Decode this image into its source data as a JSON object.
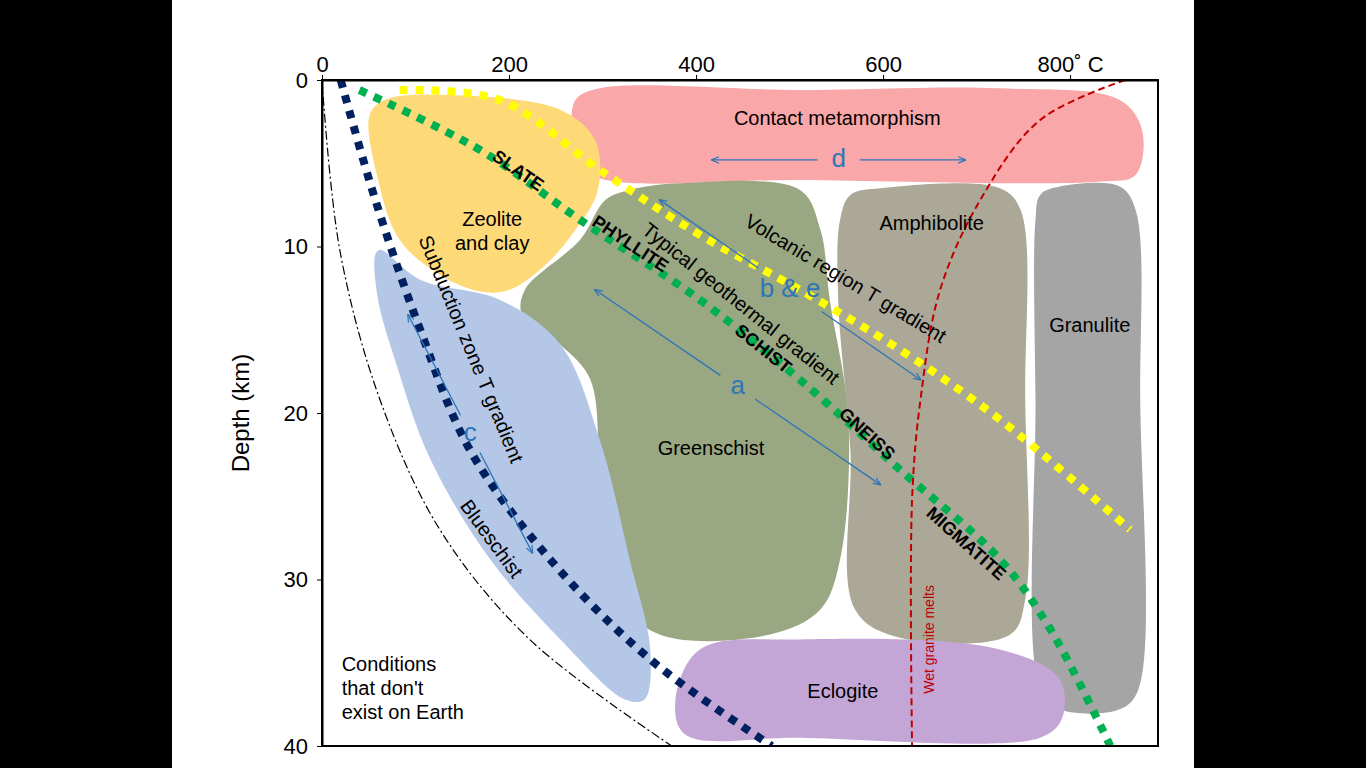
{
  "chart_data": {
    "type": "area",
    "ylabel": "Depth (km)",
    "xlim": [
      0,
      894
    ],
    "xticks": [
      0,
      200,
      400,
      600,
      {
        "value": 800,
        "label": "800˚ C"
      }
    ],
    "ylim": [
      40,
      0
    ],
    "yticks": [
      0,
      10,
      20,
      30,
      40
    ],
    "grid": false,
    "regions": [
      {
        "name": "Contact metamorphism",
        "color": "#f9a7a8",
        "x": [
          271,
          297,
          511,
          725,
          853,
          877,
          870,
          832,
          511,
          297,
          271,
          267
        ],
        "y": [
          1.2,
          0.5,
          0.6,
          0.5,
          1.2,
          3.0,
          5.7,
          6.1,
          6.0,
          5.9,
          4.8,
          3.0
        ],
        "label_x": 551,
        "label_y": 2.4
      },
      {
        "name": "Zeolite\nand clay",
        "color": "#fed978",
        "x": [
          51,
          67,
          137,
          255,
          292,
          295,
          271,
          239,
          201,
          169,
          126,
          83,
          60
        ],
        "y": [
          2.1,
          1.2,
          0.9,
          1.8,
          3.6,
          6.6,
          9.0,
          11.1,
          12.6,
          12.7,
          11.7,
          9.6,
          6.0
        ],
        "label_x": 182,
        "label_y": 9.2
      },
      {
        "name": "Greenschist",
        "color": "#9aa783",
        "x": [
          329,
          383,
          511,
          533,
          543,
          563,
          554,
          533,
          479,
          361,
          308,
          297,
          287,
          255,
          214,
          217,
          276,
          303
        ],
        "y": [
          6.6,
          6.2,
          6.6,
          9.0,
          13.2,
          20.4,
          28.8,
          31.8,
          33.3,
          33.3,
          30.6,
          24.0,
          18.0,
          15.9,
          14.1,
          12.6,
          9.6,
          7.2
        ],
        "label_x": 416,
        "label_y": 22.2
      },
      {
        "name": "Blueschist",
        "color": "#b4c7e7",
        "x": [
          57,
          62,
          105,
          190,
          255,
          297,
          329,
          351,
          345,
          324,
          255,
          180,
          116,
          78,
          60
        ],
        "y": [
          10.5,
          10.2,
          12.0,
          13.2,
          15.9,
          21.6,
          28.8,
          34.2,
          37.2,
          37.2,
          33.6,
          28.8,
          22.8,
          16.8,
          13.2
        ],
        "label_x": 180,
        "label_y": 27.6
      },
      {
        "name": "Amphibolite",
        "color": "#aca897",
        "x": [
          565,
          597,
          725,
          747,
          752,
          752,
          736,
          618,
          570,
          565,
          552,
          554
        ],
        "y": [
          6.9,
          6.5,
          6.5,
          7.8,
          19.2,
          31.2,
          33.3,
          33.5,
          31.8,
          22.2,
          13.2,
          8.4
        ],
        "label_x": 652,
        "label_y": 8.7
      },
      {
        "name": "Granulite",
        "color": "#a5a5a5",
        "x": [
          768,
          789,
          853,
          870,
          875,
          873,
          853,
          789,
          768,
          763,
          763
        ],
        "y": [
          6.9,
          6.4,
          6.4,
          7.8,
          19.2,
          36.6,
          37.8,
          37.8,
          36.6,
          19.2,
          8.4
        ],
        "label_x": 821,
        "label_y": 14.8
      },
      {
        "name": "Eclogite",
        "color": "#c3a6d6",
        "x": [
          404,
          511,
          725,
          789,
          791,
          768,
          511,
          388,
          378
        ],
        "y": [
          34.2,
          33.6,
          34.2,
          36.0,
          38.4,
          39.5,
          39.5,
          39.3,
          37.2
        ],
        "label_x": 557,
        "label_y": 36.8
      }
    ],
    "series": [
      {
        "name": "Subduction zone T gradient",
        "color": "#002060",
        "line_style": "dotted",
        "x": [
          20,
          57,
          105,
          158,
          244,
          351,
          481
        ],
        "y": [
          0,
          7.2,
          15.0,
          22.2,
          28.8,
          34.8,
          40
        ],
        "label_x": 158,
        "label_y": 16.2
      },
      {
        "name": "Typical geothermal gradient",
        "color": "#00b050",
        "line_style": "dotted",
        "x": [
          40,
          169,
          276,
          404,
          511,
          618,
          725,
          779,
          843
        ],
        "y": [
          0.6,
          4.2,
          8.4,
          13.2,
          18.0,
          23.4,
          28.8,
          33.0,
          40
        ],
        "label_x": 447,
        "label_y": 13.5
      },
      {
        "name": "Volcanic region T gradient",
        "color": "#ffff00",
        "line_style": "dotted",
        "x": [
          83,
          190,
          297,
          404,
          511,
          618,
          725,
          864
        ],
        "y": [
          0.6,
          1.2,
          5.4,
          9.3,
          12.6,
          16.2,
          20.4,
          27.0
        ],
        "label_x": 559,
        "label_y": 12
      },
      {
        "name": "Wet granite melts",
        "color": "#c00000",
        "line_style": "dashed",
        "x": [
          859,
          768,
          704,
          661,
          640,
          631,
          631
        ],
        "y": [
          0,
          2.4,
          7.2,
          12.6,
          19.2,
          25.2,
          40
        ],
        "label_x": 650,
        "label_y": 33.6
      },
      {
        "color": "#000000",
        "line_style": "dashdot",
        "x": [
          0,
          19,
          62,
          126,
          222,
          374
        ],
        "y": [
          0,
          10.2,
          19.2,
          27.0,
          33.6,
          40
        ]
      }
    ],
    "annotations": [
      {
        "text": "SLATE",
        "x": 209,
        "y": 5.5
      },
      {
        "text": "PHYLLITE",
        "x": 329,
        "y": 9.9
      },
      {
        "text": "SCHIST",
        "x": 471,
        "y": 16.2
      },
      {
        "text": "GNEISS",
        "x": 582,
        "y": 21.3
      },
      {
        "text": "MIGMATITE",
        "x": 688,
        "y": 27.9
      },
      {
        "text": "Conditions\nthat don't\nexist on Earth",
        "x": 21,
        "y": 36.6
      }
    ],
    "arrows": [
      {
        "label": "a",
        "color": "#2e75b6",
        "x": [
          292,
          597
        ],
        "y": [
          12.6,
          24.3
        ]
      },
      {
        "label": "b & e",
        "color": "#2e75b6",
        "x": [
          361,
          640
        ],
        "y": [
          7.2,
          18.0
        ]
      },
      {
        "label": "c",
        "color": "#2e75b6",
        "x": [
          92,
          225
        ],
        "y": [
          14.1,
          28.4
        ]
      },
      {
        "label": "d",
        "color": "#2e75b6",
        "x": [
          417,
          688
        ],
        "y": [
          4.8,
          4.8
        ]
      }
    ]
  }
}
